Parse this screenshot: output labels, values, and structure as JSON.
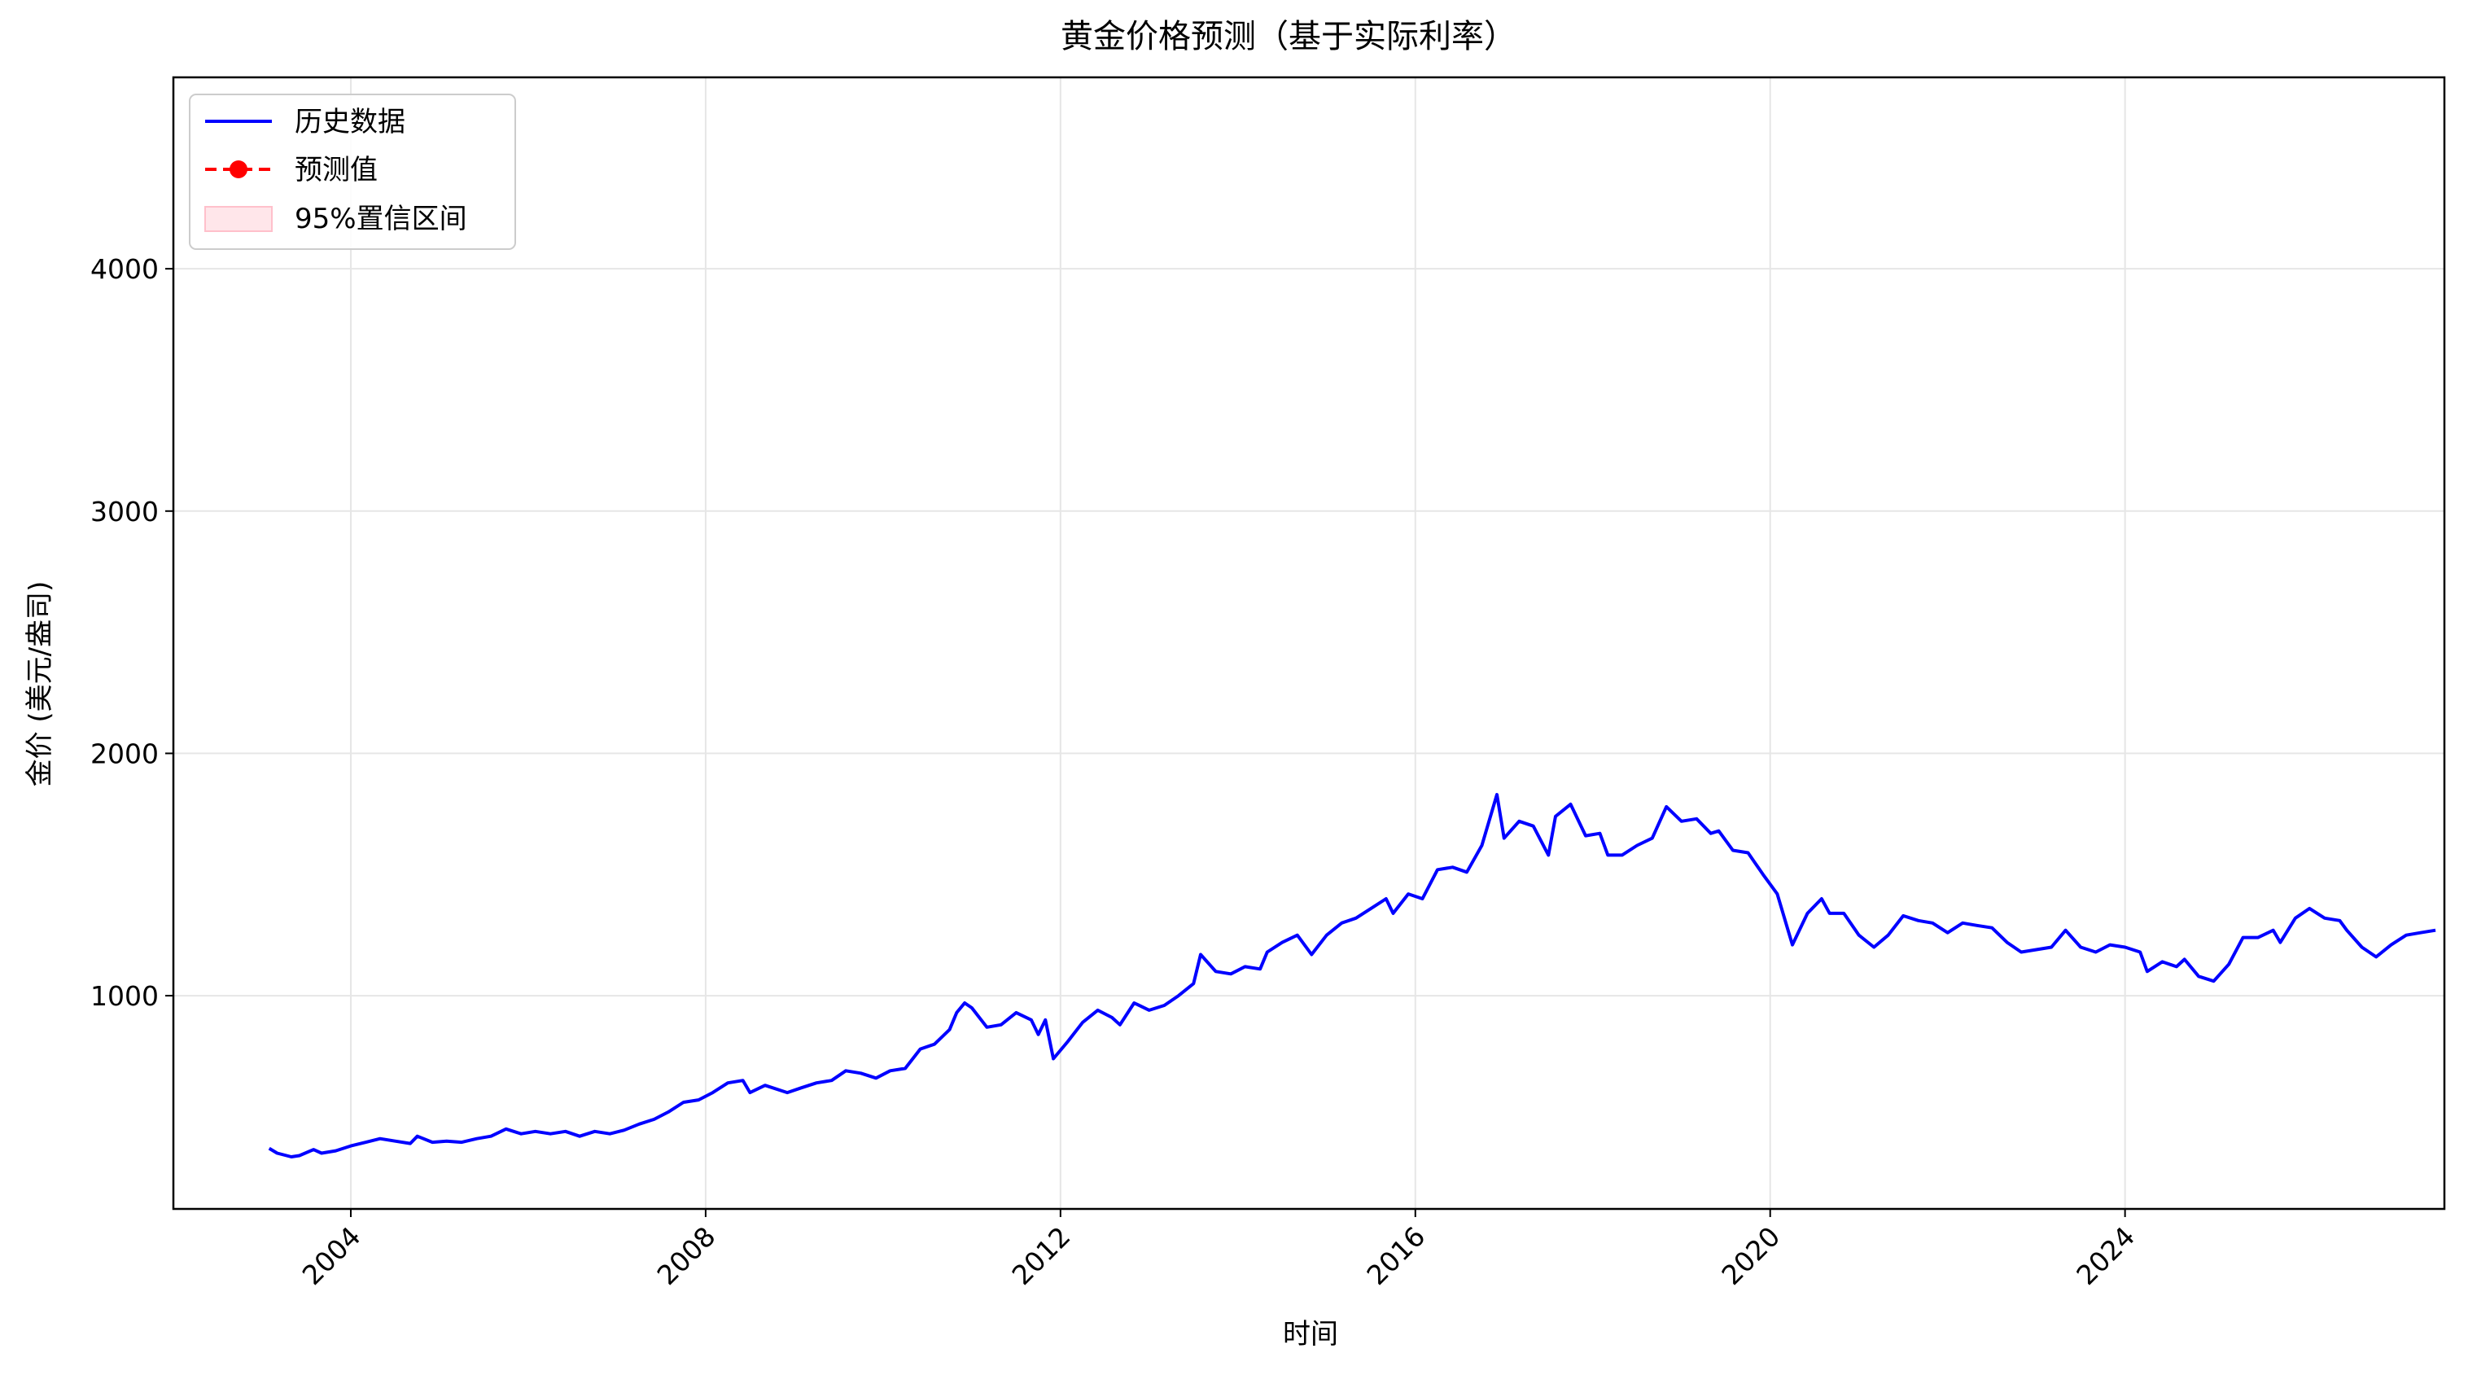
{
  "chart_data": {
    "type": "line",
    "title": "黄金价格预测（基于实际利率）",
    "xlabel": "时间",
    "ylabel": "金价 (美元/盎司)",
    "xlim": [
      2002.0,
      2027.6
    ],
    "ylim": [
      120,
      4790
    ],
    "x_ticks": [
      2004,
      2008,
      2012,
      2016,
      2020,
      2024
    ],
    "x_tick_labels": [
      "2004",
      "2008",
      "2012",
      "2016",
      "2020",
      "2024"
    ],
    "y_ticks": [
      1000,
      2000,
      3000,
      4000
    ],
    "y_tick_labels": [
      "1000",
      "2000",
      "3000",
      "4000"
    ],
    "grid": true,
    "legend_position": "top-left",
    "colors": {
      "history": "#0000ff",
      "forecast": "#ff0000",
      "band": "#ffc0cb"
    },
    "series": [
      {
        "name": "历史数据",
        "style": "line",
        "points": [
          [
            2003.08,
            370
          ],
          [
            2003.17,
            350
          ],
          [
            2003.33,
            335
          ],
          [
            2003.42,
            340
          ],
          [
            2003.58,
            365
          ],
          [
            2003.67,
            350
          ],
          [
            2003.83,
            360
          ],
          [
            2004.0,
            380
          ],
          [
            2004.17,
            395
          ],
          [
            2004.33,
            410
          ],
          [
            2004.5,
            400
          ],
          [
            2004.67,
            390
          ],
          [
            2004.75,
            420
          ],
          [
            2004.92,
            395
          ],
          [
            2005.08,
            400
          ],
          [
            2005.25,
            395
          ],
          [
            2005.42,
            410
          ],
          [
            2005.58,
            420
          ],
          [
            2005.75,
            450
          ],
          [
            2005.92,
            430
          ],
          [
            2006.08,
            440
          ],
          [
            2006.25,
            430
          ],
          [
            2006.42,
            440
          ],
          [
            2006.58,
            420
          ],
          [
            2006.75,
            440
          ],
          [
            2006.92,
            430
          ],
          [
            2007.08,
            445
          ],
          [
            2007.25,
            470
          ],
          [
            2007.42,
            490
          ],
          [
            2007.58,
            520
          ],
          [
            2007.75,
            560
          ],
          [
            2007.92,
            570
          ],
          [
            2008.08,
            600
          ],
          [
            2008.25,
            640
          ],
          [
            2008.42,
            650
          ],
          [
            2008.5,
            600
          ],
          [
            2008.67,
            630
          ],
          [
            2008.92,
            600
          ],
          [
            2009.08,
            620
          ],
          [
            2009.25,
            640
          ],
          [
            2009.42,
            650
          ],
          [
            2009.58,
            690
          ],
          [
            2009.75,
            680
          ],
          [
            2009.92,
            660
          ],
          [
            2010.08,
            690
          ],
          [
            2010.25,
            700
          ],
          [
            2010.42,
            780
          ],
          [
            2010.58,
            800
          ],
          [
            2010.75,
            860
          ],
          [
            2010.83,
            930
          ],
          [
            2010.92,
            970
          ],
          [
            2011.0,
            950
          ],
          [
            2011.17,
            870
          ],
          [
            2011.33,
            880
          ],
          [
            2011.5,
            930
          ],
          [
            2011.67,
            900
          ],
          [
            2011.75,
            840
          ],
          [
            2011.83,
            900
          ],
          [
            2011.92,
            740
          ],
          [
            2012.08,
            810
          ],
          [
            2012.25,
            890
          ],
          [
            2012.42,
            940
          ],
          [
            2012.58,
            910
          ],
          [
            2012.67,
            880
          ],
          [
            2012.83,
            970
          ],
          [
            2013.0,
            940
          ],
          [
            2013.17,
            960
          ],
          [
            2013.33,
            1000
          ],
          [
            2013.5,
            1050
          ],
          [
            2013.58,
            1170
          ],
          [
            2013.75,
            1100
          ],
          [
            2013.92,
            1090
          ],
          [
            2014.08,
            1120
          ],
          [
            2014.25,
            1110
          ],
          [
            2014.33,
            1180
          ],
          [
            2014.5,
            1220
          ],
          [
            2014.67,
            1250
          ],
          [
            2014.83,
            1170
          ],
          [
            2015.0,
            1250
          ],
          [
            2015.17,
            1300
          ],
          [
            2015.33,
            1320
          ],
          [
            2015.5,
            1360
          ],
          [
            2015.67,
            1400
          ],
          [
            2015.75,
            1340
          ],
          [
            2015.92,
            1420
          ],
          [
            2016.08,
            1400
          ],
          [
            2016.25,
            1520
          ],
          [
            2016.42,
            1530
          ],
          [
            2016.58,
            1510
          ],
          [
            2016.75,
            1620
          ],
          [
            2016.92,
            1830
          ],
          [
            2017.0,
            1650
          ],
          [
            2017.17,
            1720
          ],
          [
            2017.33,
            1700
          ],
          [
            2017.5,
            1580
          ],
          [
            2017.58,
            1740
          ],
          [
            2017.75,
            1790
          ],
          [
            2017.92,
            1660
          ],
          [
            2018.08,
            1670
          ],
          [
            2018.17,
            1580
          ],
          [
            2018.33,
            1580
          ],
          [
            2018.5,
            1620
          ],
          [
            2018.67,
            1650
          ],
          [
            2018.83,
            1780
          ],
          [
            2019.0,
            1720
          ],
          [
            2019.17,
            1730
          ],
          [
            2019.33,
            1670
          ],
          [
            2019.42,
            1680
          ],
          [
            2019.58,
            1600
          ],
          [
            2019.75,
            1590
          ],
          [
            2019.92,
            1500
          ],
          [
            2020.08,
            1420
          ],
          [
            2020.25,
            1210
          ],
          [
            2020.42,
            1340
          ],
          [
            2020.58,
            1400
          ],
          [
            2020.67,
            1340
          ],
          [
            2020.83,
            1340
          ],
          [
            2021.0,
            1250
          ],
          [
            2021.17,
            1200
          ],
          [
            2021.33,
            1250
          ],
          [
            2021.5,
            1330
          ],
          [
            2021.67,
            1310
          ],
          [
            2021.83,
            1300
          ],
          [
            2022.0,
            1260
          ],
          [
            2022.17,
            1300
          ],
          [
            2022.33,
            1290
          ],
          [
            2022.5,
            1280
          ],
          [
            2022.67,
            1220
          ],
          [
            2022.83,
            1180
          ],
          [
            2023.0,
            1190
          ],
          [
            2023.17,
            1200
          ],
          [
            2023.33,
            1270
          ],
          [
            2023.5,
            1200
          ],
          [
            2023.67,
            1180
          ],
          [
            2023.83,
            1210
          ],
          [
            2024.0,
            1200
          ],
          [
            2024.17,
            1180
          ],
          [
            2024.25,
            1100
          ],
          [
            2024.42,
            1140
          ],
          [
            2024.58,
            1120
          ],
          [
            2024.67,
            1150
          ],
          [
            2024.83,
            1080
          ],
          [
            2025.0,
            1060
          ],
          [
            2025.17,
            1130
          ],
          [
            2025.33,
            1240
          ],
          [
            2025.5,
            1240
          ],
          [
            2025.67,
            1270
          ],
          [
            2025.75,
            1220
          ],
          [
            2025.92,
            1320
          ],
          [
            2026.08,
            1360
          ],
          [
            2026.25,
            1320
          ],
          [
            2026.42,
            1310
          ],
          [
            2026.5,
            1270
          ],
          [
            2026.67,
            1200
          ],
          [
            2026.83,
            1160
          ],
          [
            2027.0,
            1210
          ],
          [
            2027.17,
            1250
          ],
          [
            2027.33,
            1260
          ],
          [
            2027.5,
            1270
          ]
        ]
      },
      {
        "name": "预测值",
        "style": "dashed-line-markers",
        "points": []
      },
      {
        "name": "95%置信区间",
        "style": "band",
        "points": []
      }
    ]
  }
}
